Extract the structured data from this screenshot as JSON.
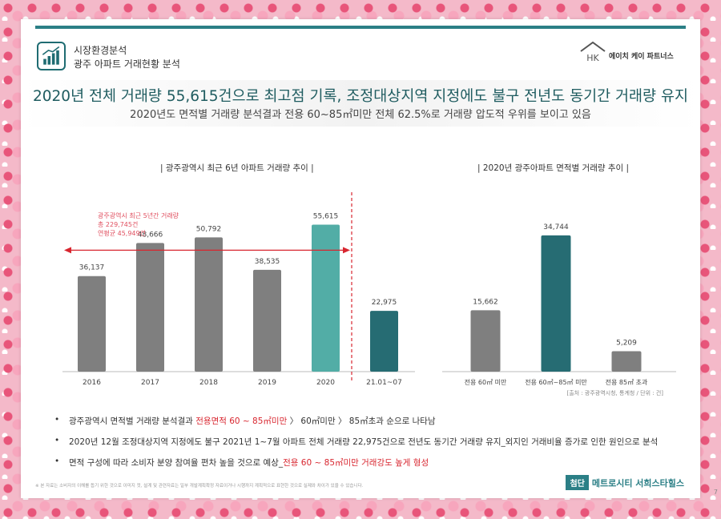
{
  "header": {
    "category": "시장환경분석",
    "subtitle": "광주 아파트 거래현황 분석",
    "icon": "chart-icon",
    "logo_text": "에이치 케이 파트너스",
    "logo_mark": "HK"
  },
  "headline": "2020년 전체 거래량 55,615건으로 최고점 기록, 조정대상지역 지정에도 불구 전년도 동기간 거래량 유지",
  "subline": "2020년도 면적별 거래량 분석결과 전용 60~85㎡미만 전체 62.5%로 거래량 압도적 우위를 보이고 있음",
  "colors": {
    "gray": "#7f7f7f",
    "teal": "#52ada6",
    "dark_teal": "#266c73",
    "red": "#d8262f",
    "red_text": "#e04f5f"
  },
  "chart_data": [
    {
      "type": "bar",
      "title": "|  광주광역시 최근 6년 아파트 거래량 추이  |",
      "categories": [
        "2016",
        "2017",
        "2018",
        "2019",
        "2020",
        "21.01~07"
      ],
      "values": [
        36137,
        48666,
        50792,
        38535,
        55615,
        22975
      ],
      "labels": [
        "36,137",
        "48,666",
        "50,792",
        "38,535",
        "55,615",
        "22,975"
      ],
      "bar_colors": [
        "#7f7f7f",
        "#7f7f7f",
        "#7f7f7f",
        "#7f7f7f",
        "#52ada6",
        "#266c73"
      ],
      "ylim": [
        0,
        60000
      ],
      "annotation": [
        "광주광역시 최근 5년간 거래량",
        "총 229,745건",
        "연평균 45,949건"
      ],
      "grid": false
    },
    {
      "type": "bar",
      "title": "|  2020년 광주아파트 면적별 거래량 추이  |",
      "categories": [
        "전용 60㎡ 미만",
        "전용 60㎡~85㎡ 미만",
        "전용 85㎡ 초과"
      ],
      "values": [
        15662,
        34744,
        5209
      ],
      "labels": [
        "15,662",
        "34,744",
        "5,209"
      ],
      "bar_colors": [
        "#7f7f7f",
        "#266c73",
        "#7f7f7f"
      ],
      "ylim": [
        0,
        38000
      ],
      "grid": false
    }
  ],
  "source": "[출처 : 광주광역시청, 통계청 / 단위 : 건]",
  "bullets": [
    {
      "pre": "광주광역시 면적별 거래량 분석결과 ",
      "hl": "전용면적 60 ~ 85㎡미만",
      "post": " 〉 60㎡미만 〉 85㎡초과 순으로 나타남"
    },
    {
      "pre": "2020년 12월 조정대상지역 지정에도 불구 2021년 1~7월 아파트 전체 거래량 22,975건으로 전년도 동기간 거래량 유지_외지인 거래비율 증가로 인한 원인으로 분석",
      "hl": "",
      "post": ""
    },
    {
      "pre": "면적 구성에 따라 소비자 분양 참여율 편차 높을 것으로 예상_",
      "hl": "전용 60 ~ 85㎡미만 거래강도 높게 형성",
      "post": ""
    }
  ],
  "footnote": "※ 본 자료는 소비자의 이해를 돕기 위한 것으로 이미지 컷, 설계 및 관련자료는 일부 개발계획확정 자료이거나 시행까지 계획적으로 표현한 것으로 실제와 차이가 있을 수 있습니다.",
  "brand": {
    "tag": "첨단",
    "name": "메트로시티 서희스타힐스"
  },
  "page_number": "7"
}
